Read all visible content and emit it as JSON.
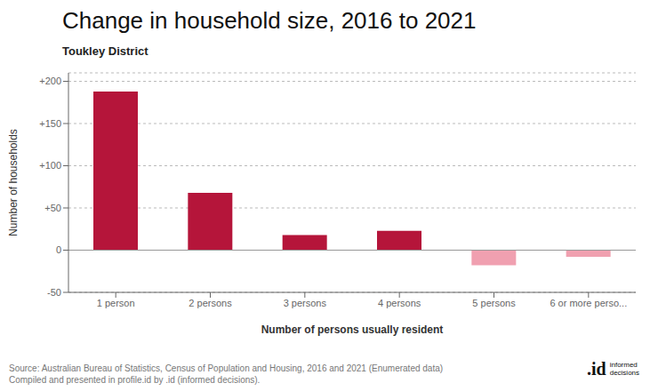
{
  "chart_data": {
    "type": "bar",
    "title": "Change in household size, 2016 to 2021",
    "subtitle": "Toukley District",
    "categories": [
      "1 person",
      "2 persons",
      "3 persons",
      "4 persons",
      "5 persons",
      "6 or more perso..."
    ],
    "values": [
      188,
      68,
      18,
      23,
      -18,
      -8
    ],
    "colors": [
      "#b5153a",
      "#b5153a",
      "#b5153a",
      "#b5153a",
      "#f0a0b0",
      "#f0a0b0"
    ],
    "xlabel": "Number of persons usually resident",
    "ylabel": "Number of households",
    "ylim": [
      -50,
      210
    ],
    "yticks": [
      -50,
      0,
      {
        "value": 50,
        "label": "+50"
      },
      {
        "value": 100,
        "label": "+100"
      },
      {
        "value": 150,
        "label": "+150"
      },
      {
        "value": 200,
        "label": "+200"
      }
    ],
    "grid": true,
    "annotations": [
      "Source: Australian Bureau of Statistics, Census of Population and Housing, 2016 and 2021 (Enumerated data)",
      "Compiled and presented in profile.id by .id (informed decisions).",
      ".id",
      "informed\ndecisions"
    ]
  }
}
